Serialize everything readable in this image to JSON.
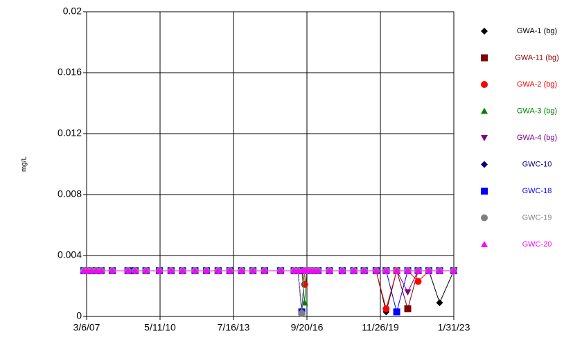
{
  "chart_data": {
    "type": "line",
    "ylabel": "mg/L",
    "x": [
      "1/21/07",
      "3/17/07",
      "5/22/07",
      "8/6/07",
      "10/22/07",
      "4/14/08",
      "12/20/08",
      "4/10/09",
      "10/1/09",
      "5/1/10",
      "11/1/10",
      "5/1/11",
      "11/15/11",
      "5/15/12",
      "11/15/12",
      "5/20/13",
      "11/20/13",
      "5/20/14",
      "11/20/14",
      "8/1/15",
      "3/1/16",
      "5/1/16",
      "7/1/16",
      "8/15/16",
      "9/20/16",
      "11/15/16",
      "1/10/17",
      "3/15/17",
      "9/10/17",
      "4/1/18",
      "10/1/18",
      "3/15/19",
      "9/20/19",
      "2/25/20",
      "8/10/20",
      "2/1/21",
      "7/15/21",
      "1/1/22",
      "6/20/22",
      "1/31/23"
    ],
    "xlim": [
      "3/6/07",
      "1/31/23"
    ],
    "xticks": [
      "3/6/07",
      "5/11/10",
      "7/16/13",
      "9/20/16",
      "11/26/19",
      "1/31/23"
    ],
    "ylim": [
      0,
      0.02
    ],
    "yticks": [
      0,
      0.004,
      0.008,
      0.012,
      0.016,
      0.02
    ],
    "grid": true,
    "legend": "right",
    "series": [
      {
        "name": "GWA-1 (bg)",
        "color": "#000000",
        "marker": "diamond",
        "values": [
          0.003,
          0.003,
          0.003,
          0.003,
          0.003,
          0.003,
          0.003,
          0.003,
          0.003,
          0.003,
          0.003,
          0.003,
          0.003,
          0.003,
          0.003,
          0.003,
          0.003,
          0.003,
          0.003,
          0.003,
          0.003,
          0.003,
          0.003,
          0.003,
          0.003,
          0.003,
          0.003,
          0.003,
          0.003,
          0.003,
          0.003,
          0.003,
          0.003,
          0.0003,
          0.003,
          0.003,
          0.003,
          0.003,
          0.0009,
          0.003
        ]
      },
      {
        "name": "GWA-11 (bg)",
        "color": "#800000",
        "marker": "square",
        "values": [
          0.003,
          0.003,
          0.003,
          0.003,
          0.003,
          0.003,
          0.003,
          0.003,
          0.003,
          0.003,
          0.003,
          0.003,
          0.003,
          0.003,
          0.003,
          0.003,
          0.003,
          0.003,
          0.003,
          0.003,
          0.003,
          0.003,
          0.003,
          0.003,
          0.003,
          0.003,
          0.003,
          0.003,
          0.003,
          0.003,
          0.003,
          0.003,
          0.003,
          0.003,
          0.003,
          0.0005,
          0.003,
          0.003,
          0.003,
          0.003
        ]
      },
      {
        "name": "GWA-2 (bg)",
        "color": "#ff0000",
        "marker": "circle",
        "values": [
          0.003,
          0.003,
          0.003,
          0.003,
          0.003,
          0.003,
          0.003,
          0.003,
          0.003,
          0.003,
          0.003,
          0.003,
          0.003,
          0.003,
          0.003,
          0.003,
          0.003,
          0.003,
          0.003,
          0.003,
          0.003,
          0.003,
          0.003,
          0.0021,
          0.003,
          0.003,
          0.003,
          0.003,
          0.003,
          0.003,
          0.003,
          0.003,
          0.003,
          0.0005,
          0.003,
          0.003,
          0.0023,
          0.003,
          0.003,
          0.003
        ]
      },
      {
        "name": "GWA-3 (bg)",
        "color": "#008000",
        "marker": "triangle",
        "values": [
          0.003,
          0.003,
          0.003,
          0.003,
          0.003,
          0.003,
          0.003,
          0.003,
          0.003,
          0.003,
          0.003,
          0.003,
          0.003,
          0.003,
          0.003,
          0.003,
          0.003,
          0.003,
          0.003,
          0.003,
          0.003,
          0.003,
          0.003,
          0.0009,
          0.003,
          0.003,
          0.003,
          0.003,
          0.003,
          0.003,
          0.003,
          0.003,
          0.003,
          0.003,
          0.003,
          0.003,
          0.003,
          0.003,
          0.003,
          0.003
        ]
      },
      {
        "name": "GWA-4 (bg)",
        "color": "#800080",
        "marker": "triangle-down",
        "values": [
          0.003,
          0.003,
          0.003,
          0.003,
          0.003,
          0.003,
          0.003,
          0.003,
          0.003,
          0.003,
          0.003,
          0.003,
          0.003,
          0.003,
          0.003,
          0.003,
          0.003,
          0.003,
          0.003,
          0.003,
          0.003,
          0.003,
          0.0002,
          0.003,
          0.003,
          0.003,
          0.003,
          0.003,
          0.003,
          0.003,
          0.003,
          0.003,
          0.003,
          0.003,
          0.003,
          0.0016,
          0.003,
          0.003,
          0.003,
          0.003
        ]
      },
      {
        "name": "GWC-10",
        "color": "#000080",
        "marker": "diamond",
        "values": [
          0.003,
          0.003,
          0.003,
          0.003,
          0.003,
          0.003,
          0.003,
          0.003,
          0.003,
          0.003,
          0.003,
          0.003,
          0.003,
          0.003,
          0.003,
          0.003,
          0.003,
          0.003,
          0.003,
          0.003,
          0.003,
          0.003,
          0.0004,
          0.003,
          0.003,
          0.003,
          0.003,
          0.003,
          0.003,
          0.003,
          0.003,
          0.003,
          0.003,
          0.003,
          0.003,
          0.003,
          0.003,
          0.003,
          0.003,
          0.003
        ]
      },
      {
        "name": "GWC-18",
        "color": "#0000ff",
        "marker": "square",
        "values": [
          0.003,
          0.003,
          0.003,
          0.003,
          0.003,
          0.003,
          0.003,
          0.003,
          0.003,
          0.003,
          0.003,
          0.003,
          0.003,
          0.003,
          0.003,
          0.003,
          0.003,
          0.003,
          0.003,
          0.003,
          0.003,
          0.003,
          0.0003,
          0.003,
          0.003,
          0.003,
          0.003,
          0.003,
          0.003,
          0.003,
          0.003,
          0.003,
          0.003,
          0.003,
          0.0003,
          0.003,
          0.003,
          0.003,
          0.003,
          0.003
        ]
      },
      {
        "name": "GWC-19",
        "color": "#808080",
        "marker": "circle",
        "values": [
          0.003,
          0.003,
          0.003,
          0.003,
          0.003,
          0.003,
          0.003,
          0.003,
          0.003,
          0.003,
          0.003,
          0.003,
          0.003,
          0.003,
          0.003,
          0.003,
          0.003,
          0.003,
          0.003,
          0.003,
          0.003,
          0.003,
          0.0002,
          0.003,
          0.003,
          0.003,
          0.003,
          0.003,
          0.003,
          0.003,
          0.003,
          0.003,
          0.003,
          0.003,
          0.003,
          0.003,
          0.003,
          0.003,
          0.003,
          0.003
        ]
      },
      {
        "name": "GWC-20",
        "color": "#ff00ff",
        "marker": "triangle",
        "values": [
          0.003,
          0.003,
          0.003,
          0.003,
          0.003,
          0.003,
          0.003,
          0.003,
          0.003,
          0.003,
          0.003,
          0.003,
          0.003,
          0.003,
          0.003,
          0.003,
          0.003,
          0.003,
          0.003,
          0.003,
          0.003,
          0.003,
          0.003,
          0.003,
          0.003,
          0.003,
          0.003,
          0.003,
          0.003,
          0.003,
          0.003,
          0.003,
          0.003,
          0.003,
          0.003,
          0.003,
          0.003,
          0.003,
          0.003,
          0.003
        ]
      }
    ]
  }
}
